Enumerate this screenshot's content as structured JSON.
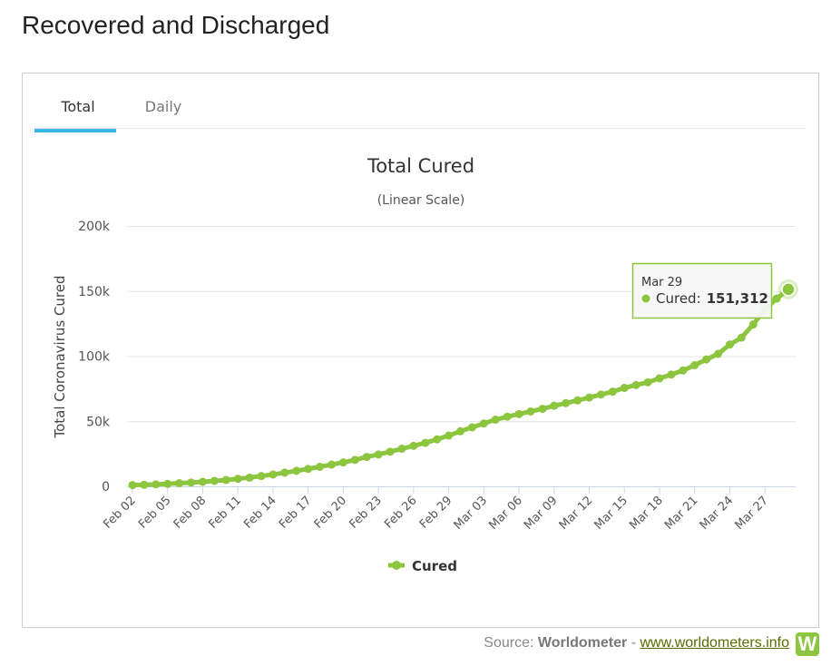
{
  "page_title": "Recovered and Discharged",
  "tabs": [
    "Total",
    "Daily"
  ],
  "chart_data": {
    "type": "line",
    "title": "Total Cured",
    "subtitle": "(Linear Scale)",
    "y_label": "Total Coronavirus Cured",
    "categories": [
      "Feb 02",
      null,
      null,
      "Feb 05",
      null,
      null,
      "Feb 08",
      null,
      null,
      "Feb 11",
      null,
      null,
      "Feb 14",
      null,
      null,
      "Feb 17",
      null,
      null,
      "Feb 20",
      null,
      null,
      "Feb 23",
      null,
      null,
      "Feb 26",
      null,
      null,
      "Feb 29",
      null,
      null,
      "Mar 03",
      null,
      null,
      "Mar 06",
      null,
      null,
      "Mar 09",
      null,
      null,
      "Mar 12",
      null,
      null,
      "Mar 15",
      null,
      null,
      "Mar 18",
      null,
      null,
      "Mar 21",
      null,
      null,
      "Mar 24",
      null,
      null,
      "Mar 27",
      null,
      null
    ],
    "series": [
      {
        "name": "Cured",
        "color": "#8cc63f",
        "values": [
          1000,
          1200,
          1500,
          1900,
          2400,
          2900,
          3500,
          4200,
          4900,
          5800,
          6700,
          7900,
          9100,
          10500,
          11900,
          13400,
          15000,
          16700,
          18400,
          20300,
          22600,
          24500,
          26600,
          28900,
          31100,
          33400,
          36100,
          39000,
          42300,
          45300,
          48300,
          51200,
          53500,
          55500,
          57500,
          59500,
          61900,
          63900,
          66000,
          68200,
          70500,
          72700,
          75600,
          77800,
          79900,
          83000,
          85800,
          89000,
          93000,
          97500,
          101700,
          108900,
          114200,
          124300,
          135900,
          144200,
          151312
        ]
      }
    ],
    "ylim": [
      0,
      200000
    ],
    "yticks": [
      0,
      {
        "value": 50000,
        "label": "50k"
      },
      {
        "value": 100000,
        "label": "100k"
      },
      {
        "value": 150000,
        "label": "150k"
      },
      {
        "value": 200000,
        "label": "200k"
      }
    ],
    "grid": true,
    "tooltip": {
      "title": "Mar 29",
      "series_label": "Cured:",
      "value_label": "151,312"
    }
  },
  "source": {
    "prefix": "Source:",
    "name": "Worldometer",
    "separator": "-",
    "link": "www.worldometers.info",
    "logo": "W"
  }
}
